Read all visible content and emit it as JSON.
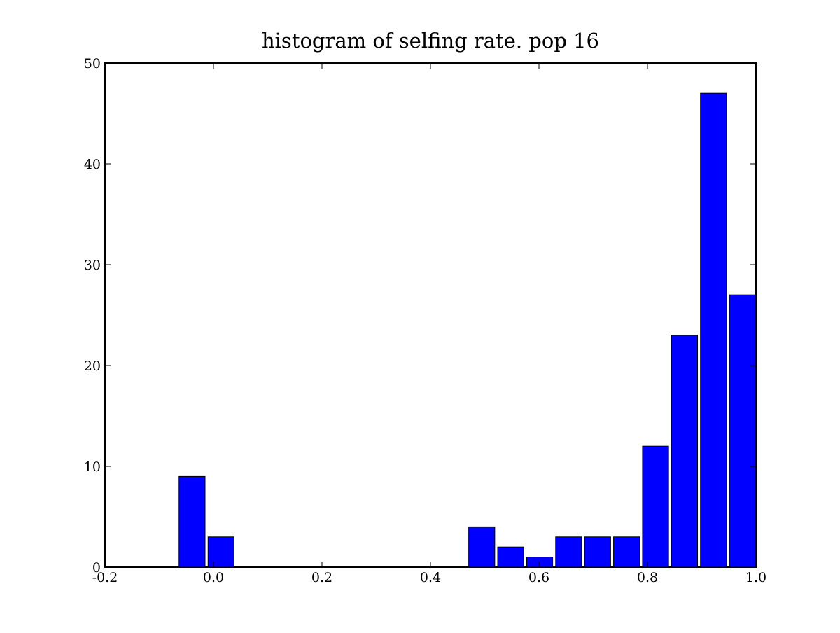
{
  "chart_data": {
    "type": "bar",
    "title": "histogram of selfing rate. pop 16",
    "xlabel": "",
    "ylabel": "",
    "xlim": [
      -0.2,
      1.0
    ],
    "ylim": [
      0,
      50
    ],
    "grid": false,
    "bar_color": "#0000ff",
    "edge_color": "#000000",
    "bar_width": 0.048,
    "x_ticks": [
      -0.2,
      0.0,
      0.2,
      0.4,
      0.6,
      0.8,
      1.0
    ],
    "x_tick_labels": [
      "-0.2",
      "0.0",
      "0.2",
      "0.4",
      "0.6",
      "0.8",
      "1.0"
    ],
    "y_ticks": [
      0,
      10,
      20,
      30,
      40,
      50
    ],
    "y_tick_labels": [
      "0",
      "10",
      "20",
      "30",
      "40",
      "50"
    ],
    "bars": [
      {
        "x": -0.0635,
        "value": 9
      },
      {
        "x": -0.01,
        "value": 3
      },
      {
        "x": 0.4705,
        "value": 4
      },
      {
        "x": 0.5239,
        "value": 2
      },
      {
        "x": 0.5773,
        "value": 1
      },
      {
        "x": 0.6307,
        "value": 3
      },
      {
        "x": 0.6841,
        "value": 3
      },
      {
        "x": 0.7375,
        "value": 3
      },
      {
        "x": 0.7909,
        "value": 12
      },
      {
        "x": 0.8443,
        "value": 23
      },
      {
        "x": 0.8977,
        "value": 47
      },
      {
        "x": 0.9511,
        "value": 27
      }
    ]
  }
}
